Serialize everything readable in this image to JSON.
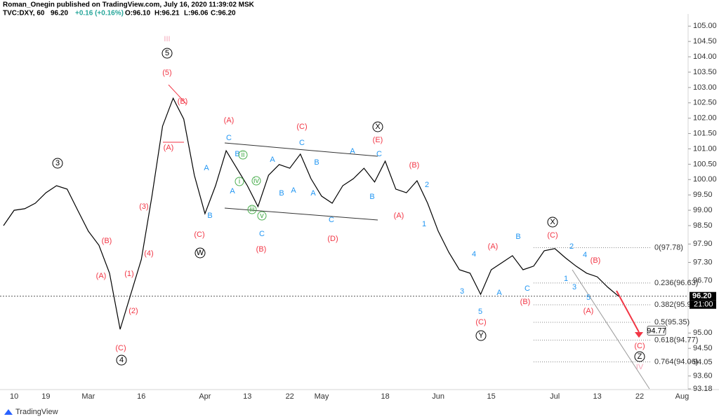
{
  "header": {
    "publisher": "Roman_Onegin published on TradingView.com, July 16, 2020 11:39:02 MSK",
    "symbol": "TVC:DXY, 60",
    "last": "96.20",
    "change": "+0.16 (+0.16%)",
    "open": "O:96.10",
    "high": "H:96.21",
    "low": "L:96.06",
    "close": "C:96.20"
  },
  "footer": {
    "brand": "TradingView"
  },
  "chart_data": {
    "type": "line",
    "color": "#000000",
    "categories": [
      null,
      "10",
      null,
      null,
      "19",
      null,
      null,
      null,
      "Mar",
      null,
      null,
      null,
      null,
      "16",
      null,
      null,
      null,
      null,
      null,
      "Apr",
      null,
      null,
      null,
      "13",
      null,
      null,
      null,
      "22",
      null,
      null,
      "May",
      null,
      null,
      null,
      null,
      null,
      "18",
      null,
      null,
      null,
      null,
      "Jun",
      null,
      null,
      null,
      null,
      "15",
      null,
      null,
      null,
      null,
      null,
      "Jul",
      null,
      null,
      null,
      "13",
      null,
      null,
      null,
      "22",
      null,
      null,
      null,
      "Aug"
    ],
    "values": [
      98.5,
      99.0,
      99.05,
      99.23,
      99.57,
      99.8,
      99.69,
      99.0,
      98.32,
      97.86,
      96.95,
      95.12,
      96.26,
      97.4,
      99.46,
      101.74,
      102.65,
      101.97,
      100.14,
      98.89,
      99.8,
      100.94,
      100.37,
      99.8,
      99.12,
      100.14,
      100.49,
      100.37,
      100.83,
      100.03,
      99.46,
      99.23,
      99.8,
      100.03,
      100.37,
      99.92,
      100.6,
      99.69,
      99.57,
      99.96,
      99.23,
      98.32,
      97.63,
      97.06,
      96.95,
      96.26,
      97.06,
      97.29,
      97.52,
      97.06,
      97.18,
      97.68,
      97.75,
      97.45,
      97.18,
      96.95,
      96.83,
      96.49,
      96.2,
      null,
      null,
      null,
      null,
      null,
      null
    ],
    "ylim": [
      93.18,
      105.28
    ],
    "yticks": [
      {
        "value": 105,
        "label": "105.00"
      },
      {
        "value": 104.5,
        "label": "104.50"
      },
      {
        "value": 104,
        "label": "104.00"
      },
      {
        "value": 103.5,
        "label": "103.50"
      },
      {
        "value": 103,
        "label": "103.00"
      },
      {
        "value": 102.5,
        "label": "102.50"
      },
      {
        "value": 102,
        "label": "102.00"
      },
      {
        "value": 101.5,
        "label": "101.50"
      },
      {
        "value": 101,
        "label": "101.00"
      },
      {
        "value": 100.5,
        "label": "100.50"
      },
      {
        "value": 100,
        "label": "100.00"
      },
      {
        "value": 99.5,
        "label": "99.50"
      },
      {
        "value": 99,
        "label": "99.00"
      },
      {
        "value": 98.5,
        "label": "98.50"
      },
      {
        "value": 97.9,
        "label": "97.90"
      },
      {
        "value": 97.3,
        "label": "97.30"
      },
      {
        "value": 96.7,
        "label": "96.70"
      },
      {
        "value": 95,
        "label": "95.00"
      },
      {
        "value": 94.5,
        "label": "94.50"
      },
      {
        "value": 94.05,
        "label": "94.05"
      },
      {
        "value": 93.6,
        "label": "93.60"
      },
      {
        "value": 93.18,
        "label": "93.18"
      }
    ],
    "last_price": {
      "value": 96.2,
      "label": "96.20"
    },
    "last_time": "21:00",
    "fib_levels": [
      {
        "value": 97.78,
        "label": "0(97.78)"
      },
      {
        "value": 96.63,
        "label": "0.236(96.63)"
      },
      {
        "value": 95.92,
        "label": "0.382(95.92)"
      },
      {
        "value": 95.35,
        "label": "0.5(95.35)"
      },
      {
        "value": 94.77,
        "label": "0.618(94.77)"
      },
      {
        "value": 94.06,
        "label": "0.764(94.06)"
      }
    ],
    "target": {
      "value": 94.77,
      "label": "94.77"
    },
    "grid": false,
    "annotations": [
      {
        "text": "(5)",
        "color": "#f23645"
      },
      {
        "text": "(B)",
        "color": "#f23645"
      },
      {
        "text": "(A)",
        "color": "#f23645"
      },
      {
        "text": "(3)",
        "color": "#f23645"
      },
      {
        "text": "(4)",
        "color": "#f23645"
      },
      {
        "text": "(B)",
        "color": "#f23645"
      },
      {
        "text": "(A)",
        "color": "#f23645"
      },
      {
        "text": "(1)",
        "color": "#f23645"
      },
      {
        "text": "(2)",
        "color": "#f23645"
      },
      {
        "text": "(C)",
        "color": "#f23645"
      },
      {
        "text": "(C)",
        "color": "#f23645"
      },
      {
        "text": "(A)",
        "color": "#f23645"
      },
      {
        "text": "(B)",
        "color": "#f23645"
      },
      {
        "text": "(C)",
        "color": "#f23645"
      },
      {
        "text": "(D)",
        "color": "#f23645"
      },
      {
        "text": "(E)",
        "color": "#f23645"
      },
      {
        "text": "(B)",
        "color": "#f23645"
      },
      {
        "text": "(A)",
        "color": "#f23645"
      },
      {
        "text": "(A)",
        "color": "#f23645"
      },
      {
        "text": "(C)",
        "color": "#f23645"
      },
      {
        "text": "(B)",
        "color": "#f23645"
      },
      {
        "text": "(C)",
        "color": "#f23645"
      },
      {
        "text": "(B)",
        "color": "#f23645"
      },
      {
        "text": "(A)",
        "color": "#f23645"
      },
      {
        "text": "(C)",
        "color": "#f23645"
      },
      {
        "text": "3",
        "color": "#000000",
        "circled": true
      },
      {
        "text": "5",
        "color": "#000000",
        "circled": true
      },
      {
        "text": "4",
        "color": "#000000",
        "circled": true
      },
      {
        "text": "W",
        "color": "#000000",
        "circled": true
      },
      {
        "text": "X",
        "color": "#000000",
        "circled": true
      },
      {
        "text": "Y",
        "color": "#000000",
        "circled": true
      },
      {
        "text": "X",
        "color": "#000000",
        "circled": true
      },
      {
        "text": "Z",
        "color": "#000000",
        "circled": true
      },
      {
        "text": "III",
        "color": "#f4a6b8"
      },
      {
        "text": "IV",
        "color": "#f4a6b8"
      },
      {
        "text": "C",
        "color": "#2196f3"
      },
      {
        "text": "B",
        "color": "#2196f3"
      },
      {
        "text": "A",
        "color": "#2196f3"
      },
      {
        "text": "A",
        "color": "#2196f3"
      },
      {
        "text": "B",
        "color": "#2196f3"
      },
      {
        "text": "C",
        "color": "#2196f3"
      },
      {
        "text": "A",
        "color": "#2196f3"
      },
      {
        "text": "B",
        "color": "#2196f3"
      },
      {
        "text": "A",
        "color": "#2196f3"
      },
      {
        "text": "C",
        "color": "#2196f3"
      },
      {
        "text": "B",
        "color": "#2196f3"
      },
      {
        "text": "A",
        "color": "#2196f3"
      },
      {
        "text": "A",
        "color": "#2196f3"
      },
      {
        "text": "B",
        "color": "#2196f3"
      },
      {
        "text": "C",
        "color": "#2196f3"
      },
      {
        "text": "C",
        "color": "#2196f3"
      },
      {
        "text": "2",
        "color": "#2196f3"
      },
      {
        "text": "1",
        "color": "#2196f3"
      },
      {
        "text": "4",
        "color": "#2196f3"
      },
      {
        "text": "3",
        "color": "#2196f3"
      },
      {
        "text": "5",
        "color": "#2196f3"
      },
      {
        "text": "A",
        "color": "#2196f3"
      },
      {
        "text": "B",
        "color": "#2196f3"
      },
      {
        "text": "C",
        "color": "#2196f3"
      },
      {
        "text": "2",
        "color": "#2196f3"
      },
      {
        "text": "4",
        "color": "#2196f3"
      },
      {
        "text": "1",
        "color": "#2196f3"
      },
      {
        "text": "3",
        "color": "#2196f3"
      },
      {
        "text": "5",
        "color": "#2196f3"
      },
      {
        "text": "ii",
        "color": "#4caf50",
        "circled": true
      },
      {
        "text": "i",
        "color": "#4caf50",
        "circled": true
      },
      {
        "text": "iv",
        "color": "#4caf50",
        "circled": true
      },
      {
        "text": "iii",
        "color": "#4caf50",
        "circled": true
      },
      {
        "text": "v",
        "color": "#4caf50",
        "circled": true
      }
    ]
  }
}
